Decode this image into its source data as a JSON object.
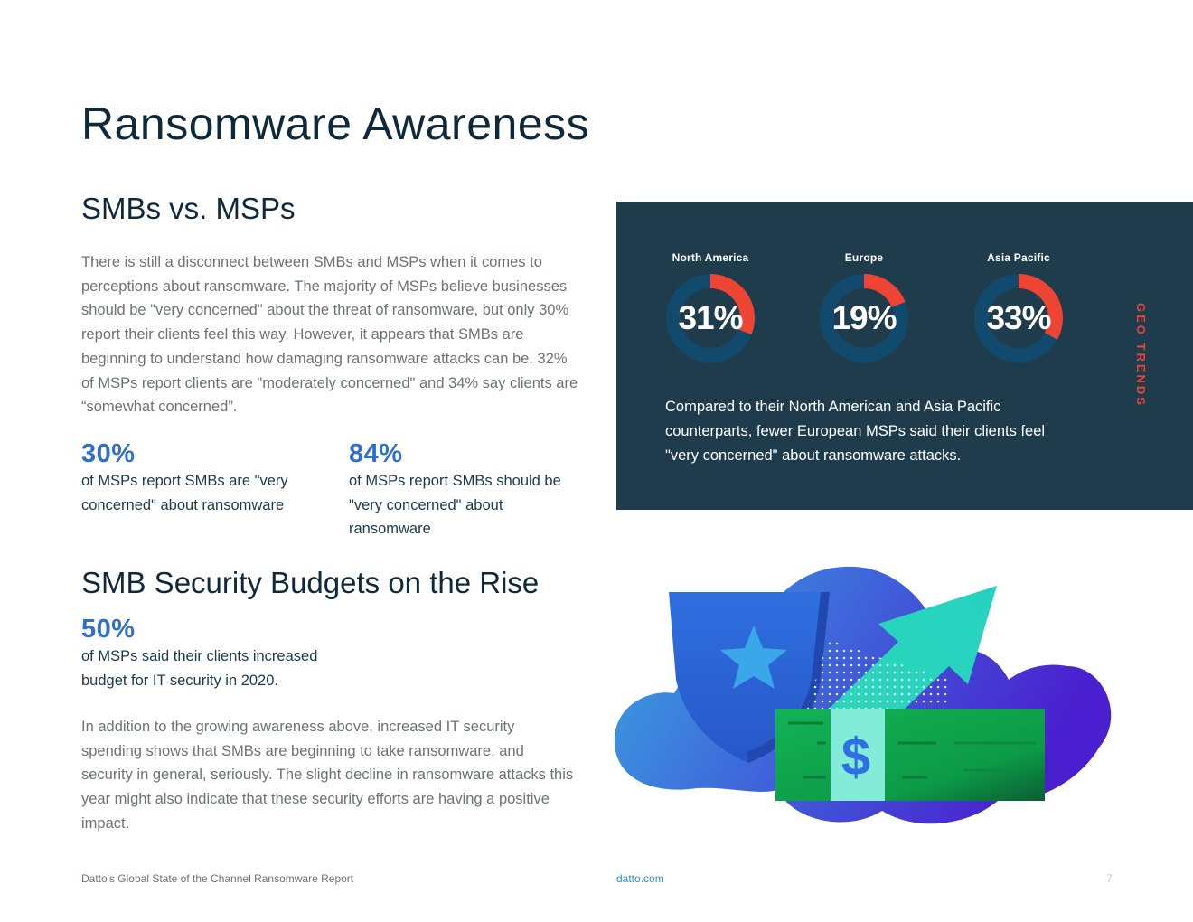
{
  "page": {
    "title": "Ransomware Awareness"
  },
  "smbs_vs_msps": {
    "heading": "SMBs vs. MSPs",
    "paragraph": "There is still a disconnect between SMBs and MSPs when it comes to perceptions about ransomware. The majority of MSPs believe businesses should be \"very concerned\" about the threat of ransomware, but only 30% report their clients feel this way. However, it appears that SMBs are beginning to understand how damaging ransomware attacks can be. 32% of MSPs report clients are \"moderately concerned\" and 34% say clients are “somewhat concerned”.",
    "stats": [
      {
        "value": "30%",
        "label": "of MSPs report SMBs are \"very concerned\" about ransomware"
      },
      {
        "value": "84%",
        "label": "of MSPs report SMBs should be \"very concerned\" about ransomware"
      }
    ]
  },
  "budgets": {
    "heading": "SMB Security Budgets on the Rise",
    "stat": {
      "value": "50%",
      "label": "of MSPs said their clients increased budget for IT security in 2020."
    },
    "paragraph": "In addition to the growing awareness above, increased IT security spending shows that SMBs are beginning to take ransomware, and security in general, seriously. The slight decline in ransomware attacks this year might also indicate that these security efforts are having a positive impact."
  },
  "geo_trends": {
    "side_label": "GEO TRENDS",
    "regions": [
      {
        "name": "North America",
        "percent_label": "31%",
        "value": 31
      },
      {
        "name": "Europe",
        "percent_label": "19%",
        "value": 19
      },
      {
        "name": "Asia Pacific",
        "percent_label": "33%",
        "value": 33
      }
    ],
    "text": "Compared to their North American and Asia Pacific counterparts, fewer European MSPs said their clients feel \"very concerned\" about ransomware attacks.",
    "colors": {
      "panel": "#1f3c4d",
      "ring_track": "#114a6c",
      "ring_value": "#ee4433",
      "side_label": "#e8463a"
    }
  },
  "illustration": {
    "currency_symbol": "$"
  },
  "footer": {
    "report_name": "Datto's Global State of the Channel Ransomware Report",
    "website": "datto.com",
    "page_number": "7"
  }
}
